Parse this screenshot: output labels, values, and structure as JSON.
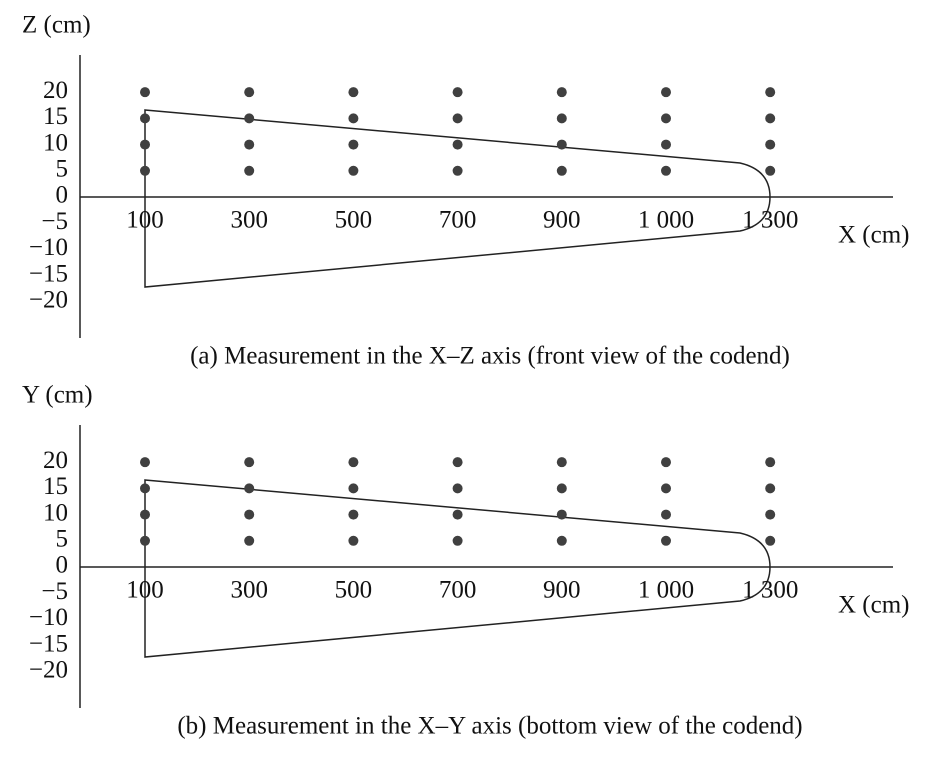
{
  "chart_data": [
    {
      "type": "scatter",
      "y_label": "Z (cm)",
      "x_label": "X (cm)",
      "caption": "(a) Measurement in the X–Z axis (front view of the codend)",
      "categories": [
        "100",
        "300",
        "500",
        "700",
        "900",
        "1 000",
        "1 300"
      ],
      "values": [
        [
          5,
          10,
          15,
          20
        ],
        [
          5,
          10,
          15,
          20
        ],
        [
          5,
          10,
          15,
          20
        ],
        [
          5,
          10,
          15,
          20
        ],
        [
          5,
          10,
          15,
          20
        ],
        [
          5,
          10,
          15,
          20
        ],
        [
          5,
          10,
          15,
          20
        ]
      ],
      "color": "#404040",
      "ylim": [
        -27,
        27
      ],
      "yticks": [
        20,
        15,
        10,
        5,
        0,
        {
          "value": -5,
          "label": "−5"
        },
        {
          "value": -10,
          "label": "−10"
        },
        {
          "value": -15,
          "label": "−15"
        },
        {
          "value": -20,
          "label": "−20"
        }
      ]
    },
    {
      "type": "scatter",
      "y_label": "Y (cm)",
      "x_label": "X (cm)",
      "caption": "(b) Measurement in the X–Y axis (bottom view of the codend)",
      "categories": [
        "100",
        "300",
        "500",
        "700",
        "900",
        "1 000",
        "1 300"
      ],
      "values": [
        [
          5,
          10,
          15,
          20
        ],
        [
          5,
          10,
          15,
          20
        ],
        [
          5,
          10,
          15,
          20
        ],
        [
          5,
          10,
          15,
          20
        ],
        [
          5,
          10,
          15,
          20
        ],
        [
          5,
          10,
          15,
          20
        ],
        [
          5,
          10,
          15,
          20
        ]
      ],
      "color": "#404040",
      "ylim": [
        -27,
        27
      ],
      "yticks": [
        20,
        15,
        10,
        5,
        0,
        {
          "value": -5,
          "label": "−5"
        },
        {
          "value": -10,
          "label": "−10"
        },
        {
          "value": -15,
          "label": "−15"
        },
        {
          "value": -20,
          "label": "−20"
        }
      ]
    }
  ]
}
